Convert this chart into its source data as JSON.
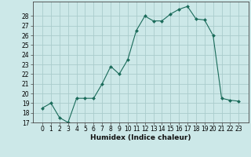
{
  "x": [
    0,
    1,
    2,
    3,
    4,
    5,
    6,
    7,
    8,
    9,
    10,
    11,
    12,
    13,
    14,
    15,
    16,
    17,
    18,
    19,
    20,
    21,
    22,
    23
  ],
  "y": [
    18.5,
    19.0,
    17.5,
    17.0,
    19.5,
    19.5,
    19.5,
    21.0,
    22.8,
    22.0,
    23.5,
    26.5,
    28.0,
    27.5,
    27.5,
    28.2,
    28.7,
    29.0,
    27.7,
    27.6,
    26.0,
    19.5,
    19.3,
    19.2
  ],
  "line_color": "#1a6b5a",
  "marker": "D",
  "marker_size": 2.0,
  "bg_color": "#cce8e8",
  "grid_color": "#aacccc",
  "xlabel": "Humidex (Indice chaleur)",
  "ylim": [
    17,
    29.5
  ],
  "yticks": [
    17,
    18,
    19,
    20,
    21,
    22,
    23,
    24,
    25,
    26,
    27,
    28
  ],
  "xticks": [
    0,
    1,
    2,
    3,
    4,
    5,
    6,
    7,
    8,
    9,
    10,
    11,
    12,
    13,
    14,
    15,
    16,
    17,
    18,
    19,
    20,
    21,
    22,
    23
  ],
  "label_fontsize": 6.5,
  "tick_fontsize": 5.5
}
